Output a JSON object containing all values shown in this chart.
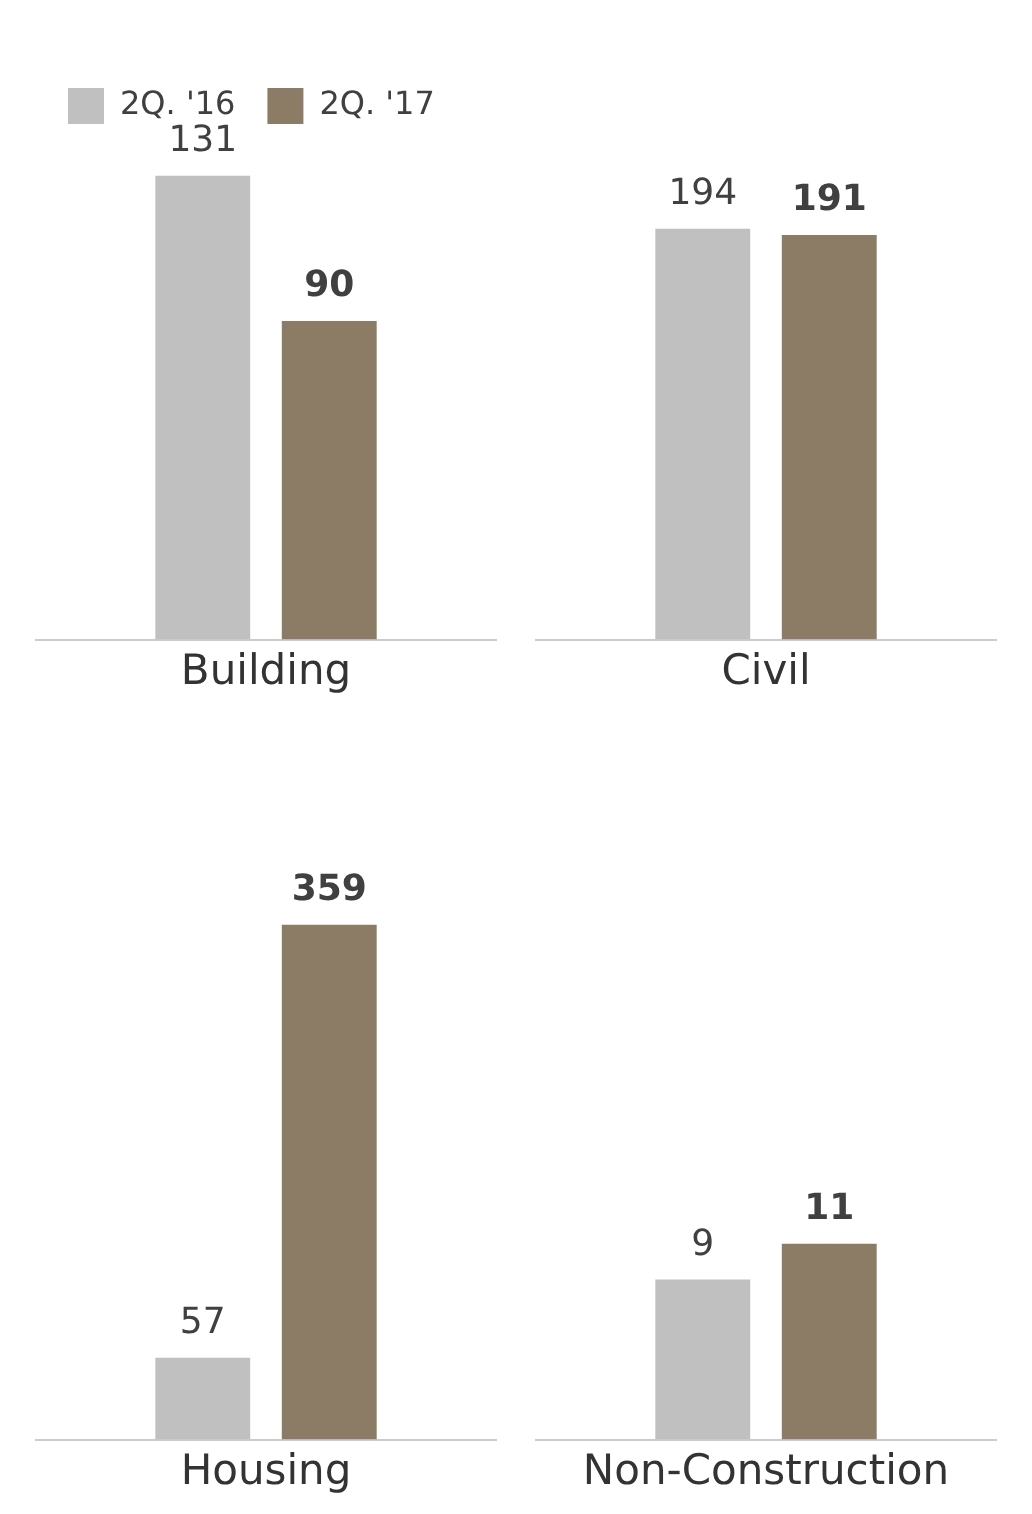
{
  "chart_data": [
    {
      "type": "bar",
      "categories": [
        "Building"
      ],
      "legend": "top left",
      "data_labels": true,
      "grid": false,
      "series": [
        {
          "name": "2Q. '16",
          "color": "#c0c0c0",
          "values": [
            131
          ]
        },
        {
          "name": "2Q. '17",
          "color": "#8c7b65",
          "values": [
            90
          ]
        }
      ]
    },
    {
      "type": "bar",
      "categories": [
        "Civil"
      ],
      "legend": false,
      "data_labels": true,
      "grid": false,
      "series": [
        {
          "color": "#c0c0c0",
          "values": [
            194
          ]
        },
        {
          "color": "#8c7b65",
          "values": [
            191
          ]
        }
      ]
    },
    {
      "type": "bar",
      "categories": [
        "Housing"
      ],
      "legend": false,
      "data_labels": true,
      "grid": false,
      "series": [
        {
          "color": "#c0c0c0",
          "values": [
            57
          ]
        },
        {
          "color": "#8c7b65",
          "values": [
            359
          ]
        }
      ]
    },
    {
      "type": "bar",
      "categories": [
        "Non-Construction"
      ],
      "legend": false,
      "data_labels": true,
      "grid": false,
      "series": [
        {
          "color": "#c0c0c0",
          "values": [
            9
          ]
        },
        {
          "color": "#8c7b65",
          "values": [
            11
          ]
        }
      ]
    }
  ]
}
